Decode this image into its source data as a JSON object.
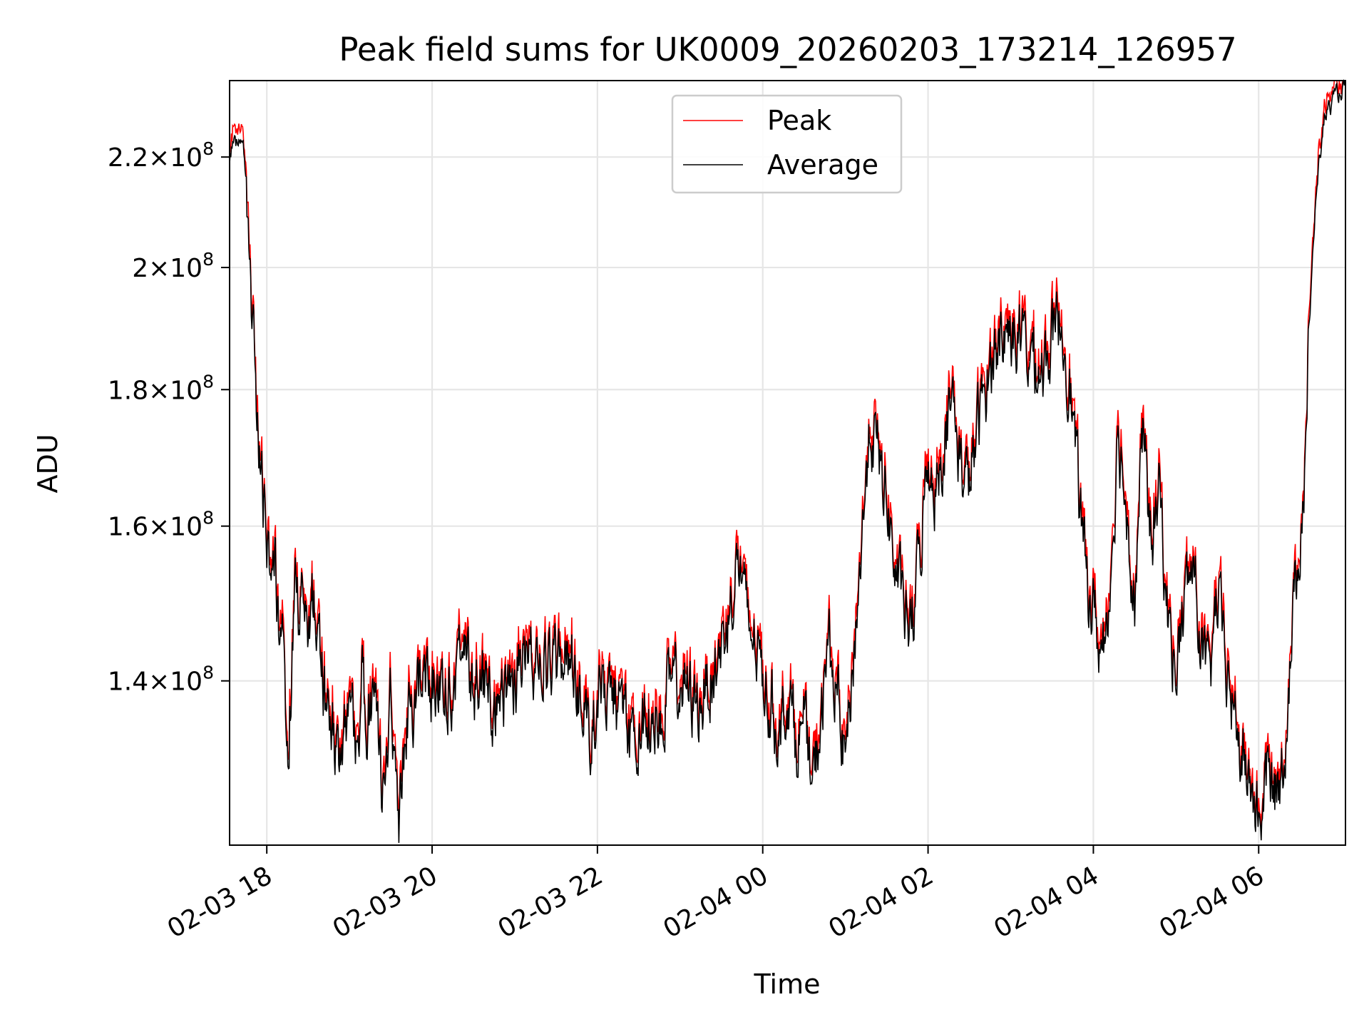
{
  "chart_data": {
    "type": "line",
    "title": "Peak field sums for UK0009_20260203_173214_126957",
    "xlabel": "Time",
    "ylabel": "ADU",
    "y_scale": "log",
    "ylim": [
      121500000.0,
      235000000.0
    ],
    "x_unit": "hours since 2026-02-03 00:00",
    "xlim": [
      17.55,
      31.05
    ],
    "grid": true,
    "legend_position": "upper center",
    "x_ticks": [
      {
        "value": 18,
        "label": "02-03 18"
      },
      {
        "value": 20,
        "label": "02-03 20"
      },
      {
        "value": 22,
        "label": "02-03 22"
      },
      {
        "value": 24,
        "label": "02-04 00"
      },
      {
        "value": 26,
        "label": "02-04 02"
      },
      {
        "value": 28,
        "label": "02-04 04"
      },
      {
        "value": 30,
        "label": "02-04 06"
      }
    ],
    "y_ticks": [
      {
        "value": 140000000.0,
        "mantissa": "1.4",
        "exponent": "8"
      },
      {
        "value": 160000000.0,
        "mantissa": "1.6",
        "exponent": "8"
      },
      {
        "value": 180000000.0,
        "mantissa": "1.8",
        "exponent": "8"
      },
      {
        "value": 200000000.0,
        "mantissa": "2",
        "exponent": "8"
      },
      {
        "value": 220000000.0,
        "mantissa": "2.2",
        "exponent": "8"
      }
    ],
    "series": [
      {
        "name": "Peak",
        "color": "#ff0000",
        "peak_offset": 0.012
      },
      {
        "name": "Average",
        "color": "#000000",
        "x": [
          17.55,
          17.6,
          17.68,
          17.72,
          17.78,
          17.85,
          17.92,
          18.0,
          18.05,
          18.1,
          18.15,
          18.2,
          18.25,
          18.3,
          18.35,
          18.4,
          18.45,
          18.5,
          18.55,
          18.6,
          18.7,
          18.8,
          18.9,
          19.0,
          19.1,
          19.15,
          19.2,
          19.3,
          19.4,
          19.5,
          19.6,
          19.7,
          19.8,
          19.9,
          20.0,
          20.2,
          20.4,
          20.6,
          20.8,
          21.0,
          21.2,
          21.4,
          21.6,
          21.8,
          21.9,
          22.0,
          22.2,
          22.4,
          22.6,
          22.8,
          23.0,
          23.2,
          23.4,
          23.5,
          23.6,
          23.7,
          23.8,
          23.9,
          24.0,
          24.1,
          24.2,
          24.3,
          24.4,
          24.5,
          24.6,
          24.7,
          24.8,
          24.9,
          25.0,
          25.1,
          25.2,
          25.3,
          25.5,
          25.6,
          25.7,
          25.8,
          25.9,
          26.0,
          26.1,
          26.2,
          26.3,
          26.4,
          26.5,
          26.6,
          26.8,
          27.0,
          27.2,
          27.4,
          27.5,
          27.6,
          27.7,
          27.8,
          27.9,
          28.0,
          28.1,
          28.2,
          28.3,
          28.4,
          28.5,
          28.6,
          28.7,
          28.8,
          28.9,
          29.0,
          29.1,
          29.2,
          29.3,
          29.4,
          29.5,
          29.6,
          29.7,
          29.8,
          29.9,
          30.0,
          30.1,
          30.2,
          30.3,
          30.4,
          30.5,
          30.55,
          30.6,
          30.7,
          30.8,
          30.9,
          31.0,
          31.05
        ],
        "y": [
          220000000.0,
          223000000.0,
          222000000.0,
          221000000.0,
          208000000.0,
          185000000.0,
          170000000.0,
          156000000.0,
          150000000.0,
          156000000.0,
          142000000.0,
          150000000.0,
          131000000.0,
          142000000.0,
          152000000.0,
          148000000.0,
          153000000.0,
          145000000.0,
          152000000.0,
          147000000.0,
          138000000.0,
          134000000.0,
          130000000.0,
          139000000.0,
          133000000.0,
          141000000.0,
          135000000.0,
          140000000.0,
          126000000.0,
          139000000.0,
          124000000.0,
          136000000.0,
          138000000.0,
          141000000.0,
          139000000.0,
          140000000.0,
          142000000.0,
          139000000.0,
          137000000.0,
          141000000.0,
          144000000.0,
          142000000.0,
          143000000.0,
          139000000.0,
          134000000.0,
          138000000.0,
          139000000.0,
          132000000.0,
          136000000.0,
          138000000.0,
          140000000.0,
          137000000.0,
          141000000.0,
          144000000.0,
          149000000.0,
          156000000.0,
          148000000.0,
          145000000.0,
          141000000.0,
          137000000.0,
          134000000.0,
          139000000.0,
          133000000.0,
          135000000.0,
          127000000.0,
          135000000.0,
          145000000.0,
          138000000.0,
          130000000.0,
          143000000.0,
          158000000.0,
          175000000.0,
          164000000.0,
          154000000.0,
          149000000.0,
          146000000.0,
          156000000.0,
          170000000.0,
          165000000.0,
          174000000.0,
          178000000.0,
          168000000.0,
          166000000.0,
          174000000.0,
          187000000.0,
          190000000.0,
          186000000.0,
          183000000.0,
          188000000.0,
          191000000.0,
          184000000.0,
          168000000.0,
          154000000.0,
          149000000.0,
          143000000.0,
          152000000.0,
          174000000.0,
          163000000.0,
          150000000.0,
          173000000.0,
          158000000.0,
          165000000.0,
          148000000.0,
          141000000.0,
          150000000.0,
          155000000.0,
          145000000.0,
          139000000.0,
          151000000.0,
          142000000.0,
          136000000.0,
          131000000.0,
          128000000.0,
          124000000.0,
          129000000.0,
          127000000.0,
          131000000.0,
          145000000.0,
          160000000.0,
          167000000.0,
          185000000.0,
          215000000.0,
          228000000.0,
          231000000.0,
          233000000.0,
          234000000.0
        ]
      }
    ]
  }
}
